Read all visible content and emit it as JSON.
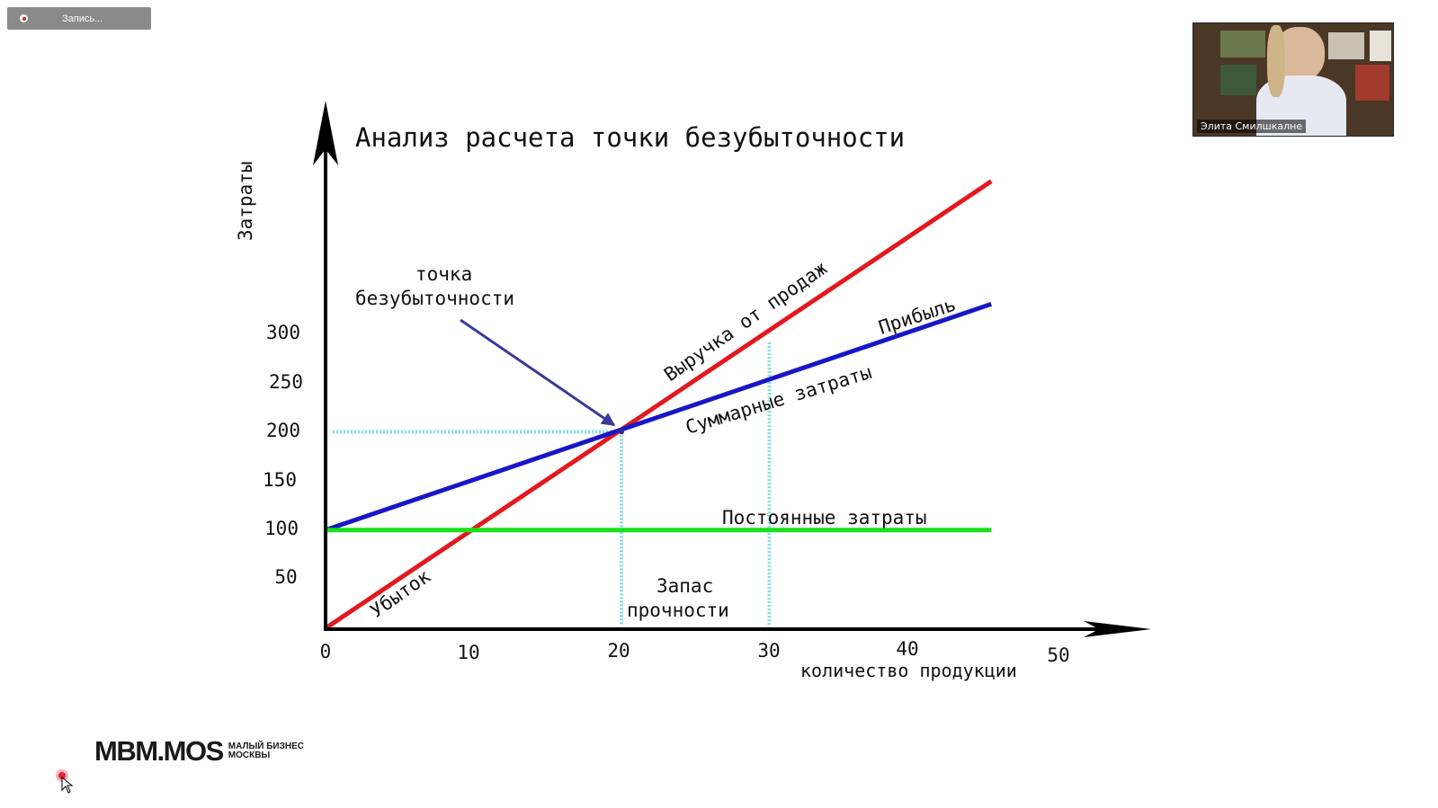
{
  "recording": {
    "label": "Запись..."
  },
  "participant": {
    "name": "Элита Смилшкалне"
  },
  "logo": {
    "main": "MBM.MOS",
    "sub_line1": "МАЛЫЙ БИЗНЕС",
    "sub_line2": "МОСКВЫ"
  },
  "chart_data": {
    "type": "line",
    "title": "Анализ расчета точки безубыточности",
    "ylabel": "Затраты",
    "xlabel": "количество продукции",
    "x_ticks": [
      "0",
      "10",
      "20",
      "30",
      "40",
      "50"
    ],
    "y_ticks": [
      "50",
      "100",
      "150",
      "200",
      "250",
      "300"
    ],
    "series": [
      {
        "name": "Выручка от продаж",
        "color": "#e2191f",
        "points": [
          [
            0,
            0
          ],
          [
            45,
            455
          ]
        ]
      },
      {
        "name": "Суммарные затраты",
        "color": "#1717c8",
        "points": [
          [
            0,
            100
          ],
          [
            45,
            330
          ]
        ]
      },
      {
        "name": "Постоянные затраты",
        "color": "#19e019",
        "points": [
          [
            0,
            100
          ],
          [
            45,
            100
          ]
        ]
      }
    ],
    "reference_lines": {
      "color": "#7fe0e8",
      "h_at_y": 200,
      "v_at_x": [
        20,
        30
      ]
    },
    "annotations": {
      "breakeven_point": [
        "точка",
        "безубыточности"
      ],
      "profit": "Прибыль",
      "loss": "Убыток",
      "safety_margin": [
        "Запас",
        "прочности"
      ]
    }
  }
}
